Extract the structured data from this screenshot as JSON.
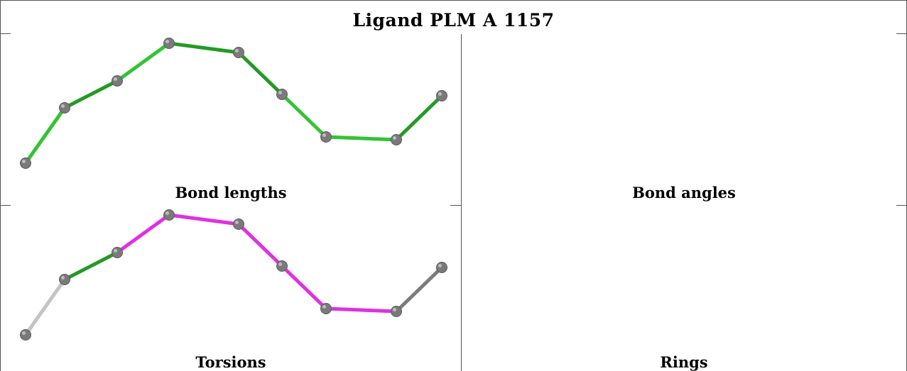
{
  "title": "Ligand PLM A 1157",
  "colors": {
    "atom": "#7a7a7a",
    "green": "#33c433",
    "dark_green": "#249a24",
    "magenta": "#e030e0",
    "gray_light": "#c4c4c4",
    "gray_mid": "#9a9a9a",
    "gray_dark": "#7c7c7c"
  },
  "panels": [
    {
      "caption": "Bond lengths",
      "bond_colors": [
        "green",
        "dark_green",
        "green",
        "dark_green",
        "dark_green",
        "green",
        "green",
        "dark_green"
      ]
    },
    {
      "caption": "Bond angles",
      "bond_colors": [
        "green",
        "dark_green",
        "green",
        "dark_green",
        "dark_green",
        "green",
        "green",
        "dark_green"
      ]
    },
    {
      "caption": "Torsions",
      "bond_colors": [
        "gray_light",
        "dark_green",
        "magenta",
        "magenta",
        "magenta",
        "magenta",
        "magenta",
        "gray_dark"
      ]
    },
    {
      "caption": "Rings",
      "bond_colors": [
        "gray_light",
        "gray_mid",
        "gray_light",
        "gray_mid",
        "gray_light",
        "gray_mid",
        "gray_light",
        "gray_mid"
      ]
    }
  ]
}
